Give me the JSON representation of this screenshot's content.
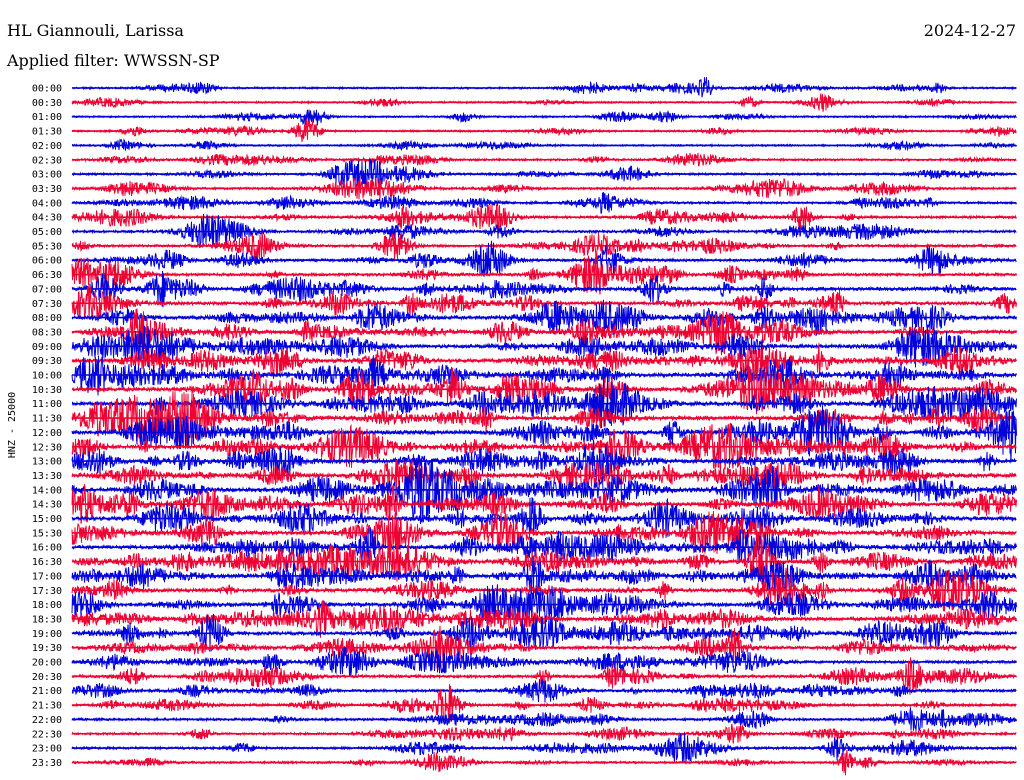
{
  "header": {
    "station": "HL Giannouli, Larissa",
    "date": "2024-12-27",
    "filter": "Applied filter: WWSSN-SP"
  },
  "chart_data": {
    "type": "line",
    "title": "HL Giannouli, Larissa",
    "subtitle": "Applied filter: WWSSN-SP",
    "ylabel": "HNZ - 25000",
    "colors": [
      "#0000dd",
      "#ee0033"
    ],
    "rows": [
      {
        "label": "00:00",
        "activity": 0.25
      },
      {
        "label": "00:30",
        "activity": 0.2
      },
      {
        "label": "01:00",
        "activity": 0.2
      },
      {
        "label": "01:30",
        "activity": 0.25
      },
      {
        "label": "02:00",
        "activity": 0.2
      },
      {
        "label": "02:30",
        "activity": 0.35
      },
      {
        "label": "03:00",
        "activity": 0.35
      },
      {
        "label": "03:30",
        "activity": 0.35
      },
      {
        "label": "04:00",
        "activity": 0.4
      },
      {
        "label": "04:30",
        "activity": 0.45
      },
      {
        "label": "05:00",
        "activity": 0.45
      },
      {
        "label": "05:30",
        "activity": 0.5
      },
      {
        "label": "06:00",
        "activity": 0.55
      },
      {
        "label": "06:30",
        "activity": 0.6
      },
      {
        "label": "07:00",
        "activity": 0.8
      },
      {
        "label": "07:30",
        "activity": 0.75
      },
      {
        "label": "08:00",
        "activity": 0.85
      },
      {
        "label": "08:30",
        "activity": 0.85
      },
      {
        "label": "09:00",
        "activity": 0.85
      },
      {
        "label": "09:30",
        "activity": 0.9
      },
      {
        "label": "10:00",
        "activity": 1.0
      },
      {
        "label": "10:30",
        "activity": 1.0
      },
      {
        "label": "11:00",
        "activity": 1.0
      },
      {
        "label": "11:30",
        "activity": 1.0
      },
      {
        "label": "12:00",
        "activity": 1.0
      },
      {
        "label": "12:30",
        "activity": 1.0
      },
      {
        "label": "13:00",
        "activity": 1.0
      },
      {
        "label": "13:30",
        "activity": 1.0
      },
      {
        "label": "14:00",
        "activity": 1.0
      },
      {
        "label": "14:30",
        "activity": 0.95
      },
      {
        "label": "15:00",
        "activity": 0.95
      },
      {
        "label": "15:30",
        "activity": 0.9
      },
      {
        "label": "16:00",
        "activity": 0.9
      },
      {
        "label": "16:30",
        "activity": 0.9
      },
      {
        "label": "17:00",
        "activity": 0.9
      },
      {
        "label": "17:30",
        "activity": 0.9
      },
      {
        "label": "18:00",
        "activity": 0.85
      },
      {
        "label": "18:30",
        "activity": 0.85
      },
      {
        "label": "19:00",
        "activity": 0.8
      },
      {
        "label": "19:30",
        "activity": 0.7
      },
      {
        "label": "20:00",
        "activity": 0.65
      },
      {
        "label": "20:30",
        "activity": 0.6
      },
      {
        "label": "21:00",
        "activity": 0.55
      },
      {
        "label": "21:30",
        "activity": 0.5
      },
      {
        "label": "22:00",
        "activity": 0.45
      },
      {
        "label": "22:30",
        "activity": 0.4
      },
      {
        "label": "23:00",
        "activity": 0.45
      },
      {
        "label": "23:30",
        "activity": 0.35
      }
    ]
  }
}
